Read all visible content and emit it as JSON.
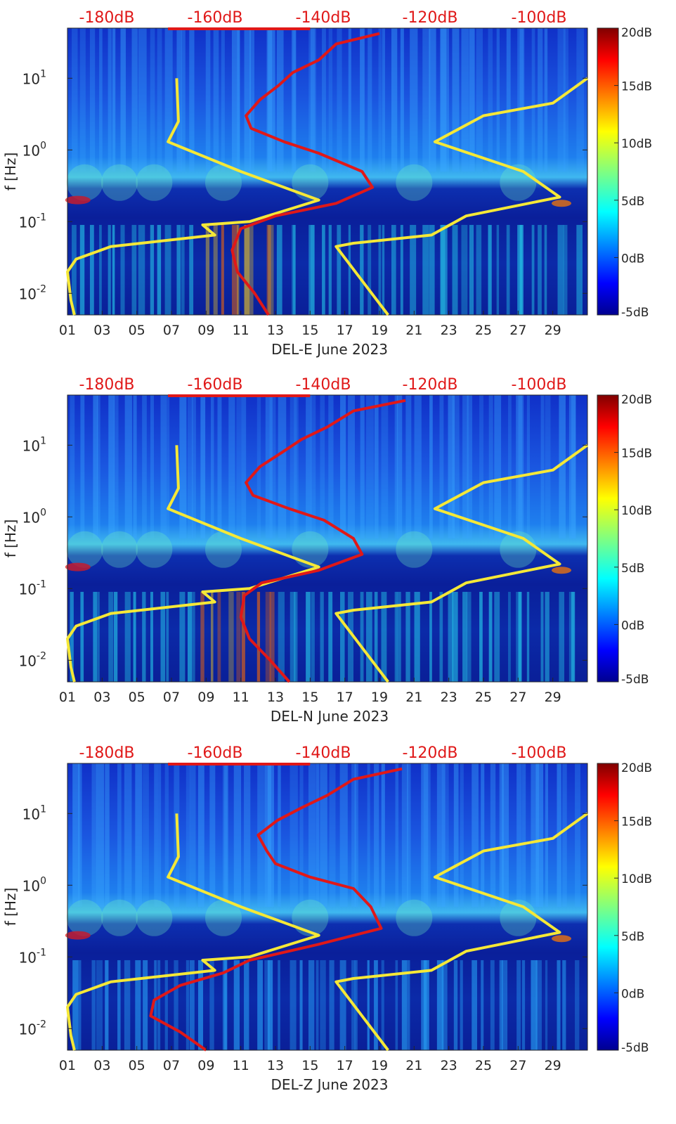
{
  "colors": {
    "yellow_curve": "#f5e837",
    "red_curve": "#e01818",
    "top_label": "#e01818",
    "axis_text": "#262626"
  },
  "chart_data": [
    {
      "type": "heatmap",
      "station": "DEL-E",
      "xlabel": "DEL-E June 2023",
      "ylabel": "f [Hz]",
      "x_ticks": [
        "01",
        "03",
        "05",
        "07",
        "09",
        "11",
        "13",
        "15",
        "17",
        "19",
        "21",
        "23",
        "25",
        "27",
        "29"
      ],
      "y_ticks": [
        "10^-2",
        "10^-1",
        "10^0",
        "10^1"
      ],
      "yscale": "log",
      "ylim": [
        0.005,
        50
      ],
      "top_axis_ticks": [
        "-180dB",
        "-160dB",
        "-140dB",
        "-120dB",
        "-100dB"
      ],
      "colorbar": {
        "ticks": [
          "20dB",
          "15dB",
          "10dB",
          "5dB",
          "0dB",
          "-5dB"
        ],
        "range": [
          -5,
          20
        ]
      },
      "series": [
        {
          "color": "yellow",
          "points": [
            [
              7.3,
              10
            ],
            [
              7.4,
              2.5
            ],
            [
              6.8,
              1.3
            ],
            [
              11,
              0.5
            ],
            [
              15.5,
              0.2
            ],
            [
              11.5,
              0.1
            ],
            [
              8.8,
              0.09
            ],
            [
              9.5,
              0.065
            ],
            [
              3.5,
              0.045
            ],
            [
              1.5,
              0.03
            ],
            [
              1,
              0.02
            ],
            [
              1.2,
              0.008
            ],
            [
              1.4,
              0.005
            ]
          ]
        },
        {
          "color": "yellow",
          "points": [
            [
              31,
              10
            ],
            [
              29,
              4.5
            ],
            [
              25,
              3
            ],
            [
              22.2,
              1.3
            ],
            [
              27.3,
              0.5
            ],
            [
              29.4,
              0.22
            ],
            [
              24,
              0.12
            ],
            [
              22,
              0.065
            ],
            [
              17.5,
              0.05
            ],
            [
              16.5,
              0.045
            ],
            [
              19.5,
              0.005
            ]
          ]
        },
        {
          "color": "red",
          "points": [
            [
              19,
              42
            ],
            [
              16.5,
              30
            ],
            [
              15.5,
              18
            ],
            [
              14,
              12
            ],
            [
              13.2,
              8
            ],
            [
              12.1,
              5
            ],
            [
              11.3,
              3
            ],
            [
              11.6,
              2
            ],
            [
              13.5,
              1.3
            ],
            [
              15.5,
              0.9
            ],
            [
              18,
              0.5
            ],
            [
              18.6,
              0.3
            ],
            [
              16.5,
              0.18
            ],
            [
              13,
              0.12
            ],
            [
              11,
              0.08
            ],
            [
              10.5,
              0.04
            ],
            [
              10.8,
              0.02
            ],
            [
              11.8,
              0.01
            ],
            [
              12.6,
              0.005
            ]
          ]
        }
      ]
    },
    {
      "type": "heatmap",
      "station": "DEL-N",
      "xlabel": "DEL-N June 2023",
      "ylabel": "f [Hz]",
      "x_ticks": [
        "01",
        "03",
        "05",
        "07",
        "09",
        "11",
        "13",
        "15",
        "17",
        "19",
        "21",
        "23",
        "25",
        "27",
        "29"
      ],
      "y_ticks": [
        "10^-2",
        "10^-1",
        "10^0",
        "10^1"
      ],
      "yscale": "log",
      "ylim": [
        0.005,
        50
      ],
      "top_axis_ticks": [
        "-180dB",
        "-160dB",
        "-140dB",
        "-120dB",
        "-100dB"
      ],
      "colorbar": {
        "ticks": [
          "20dB",
          "15dB",
          "10dB",
          "5dB",
          "0dB",
          "-5dB"
        ],
        "range": [
          -5,
          20
        ]
      },
      "series": [
        {
          "color": "yellow",
          "points": [
            [
              7.3,
              10
            ],
            [
              7.4,
              2.5
            ],
            [
              6.8,
              1.3
            ],
            [
              11,
              0.5
            ],
            [
              15.5,
              0.2
            ],
            [
              11.5,
              0.1
            ],
            [
              8.8,
              0.09
            ],
            [
              9.5,
              0.065
            ],
            [
              3.5,
              0.045
            ],
            [
              1.5,
              0.03
            ],
            [
              1,
              0.02
            ],
            [
              1.2,
              0.008
            ],
            [
              1.4,
              0.005
            ]
          ]
        },
        {
          "color": "yellow",
          "points": [
            [
              31,
              10
            ],
            [
              29,
              4.5
            ],
            [
              25,
              3
            ],
            [
              22.2,
              1.3
            ],
            [
              27.3,
              0.5
            ],
            [
              29.4,
              0.22
            ],
            [
              24,
              0.12
            ],
            [
              22,
              0.065
            ],
            [
              17.5,
              0.05
            ],
            [
              16.5,
              0.045
            ],
            [
              19.5,
              0.005
            ]
          ]
        },
        {
          "color": "red",
          "points": [
            [
              20.5,
              42
            ],
            [
              17.5,
              30
            ],
            [
              16,
              18
            ],
            [
              14.5,
              12
            ],
            [
              13.4,
              8
            ],
            [
              12.1,
              5
            ],
            [
              11.3,
              3
            ],
            [
              11.7,
              2
            ],
            [
              13.8,
              1.3
            ],
            [
              15.8,
              0.9
            ],
            [
              17.5,
              0.5
            ],
            [
              18,
              0.3
            ],
            [
              15.5,
              0.18
            ],
            [
              12.2,
              0.12
            ],
            [
              11.2,
              0.08
            ],
            [
              11,
              0.04
            ],
            [
              11.5,
              0.02
            ],
            [
              12.7,
              0.01
            ],
            [
              13.8,
              0.005
            ]
          ]
        }
      ]
    },
    {
      "type": "heatmap",
      "station": "DEL-Z",
      "xlabel": "DEL-Z June 2023",
      "ylabel": "f [Hz]",
      "x_ticks": [
        "01",
        "03",
        "05",
        "07",
        "09",
        "11",
        "13",
        "15",
        "17",
        "19",
        "21",
        "23",
        "25",
        "27",
        "29"
      ],
      "y_ticks": [
        "10^-2",
        "10^-1",
        "10^0",
        "10^1"
      ],
      "yscale": "log",
      "ylim": [
        0.005,
        50
      ],
      "top_axis_ticks": [
        "-180dB",
        "-160dB",
        "-140dB",
        "-120dB",
        "-100dB"
      ],
      "colorbar": {
        "ticks": [
          "20dB",
          "15dB",
          "10dB",
          "5dB",
          "0dB",
          "-5dB"
        ],
        "range": [
          -5,
          20
        ]
      },
      "series": [
        {
          "color": "yellow",
          "points": [
            [
              7.3,
              10
            ],
            [
              7.4,
              2.5
            ],
            [
              6.8,
              1.3
            ],
            [
              11,
              0.5
            ],
            [
              15.5,
              0.2
            ],
            [
              11.5,
              0.1
            ],
            [
              8.8,
              0.09
            ],
            [
              9.5,
              0.065
            ],
            [
              3.5,
              0.045
            ],
            [
              1.5,
              0.03
            ],
            [
              1,
              0.02
            ],
            [
              1.2,
              0.008
            ],
            [
              1.4,
              0.005
            ]
          ]
        },
        {
          "color": "yellow",
          "points": [
            [
              31,
              10
            ],
            [
              29,
              4.5
            ],
            [
              25,
              3
            ],
            [
              22.2,
              1.3
            ],
            [
              27.3,
              0.5
            ],
            [
              29.4,
              0.22
            ],
            [
              24,
              0.12
            ],
            [
              22,
              0.065
            ],
            [
              17.5,
              0.05
            ],
            [
              16.5,
              0.045
            ],
            [
              19.5,
              0.005
            ]
          ]
        },
        {
          "color": "red",
          "points": [
            [
              20.3,
              42
            ],
            [
              17.5,
              30
            ],
            [
              16,
              18
            ],
            [
              14.5,
              12
            ],
            [
              13.1,
              8
            ],
            [
              12,
              5
            ],
            [
              12.5,
              3
            ],
            [
              13,
              2
            ],
            [
              15,
              1.3
            ],
            [
              17.5,
              0.9
            ],
            [
              18.5,
              0.5
            ],
            [
              19.1,
              0.25
            ],
            [
              15.5,
              0.15
            ],
            [
              11.5,
              0.09
            ],
            [
              10,
              0.06
            ],
            [
              7.5,
              0.04
            ],
            [
              6,
              0.025
            ],
            [
              5.8,
              0.015
            ],
            [
              7.5,
              0.009
            ],
            [
              9,
              0.005
            ]
          ]
        }
      ]
    }
  ]
}
